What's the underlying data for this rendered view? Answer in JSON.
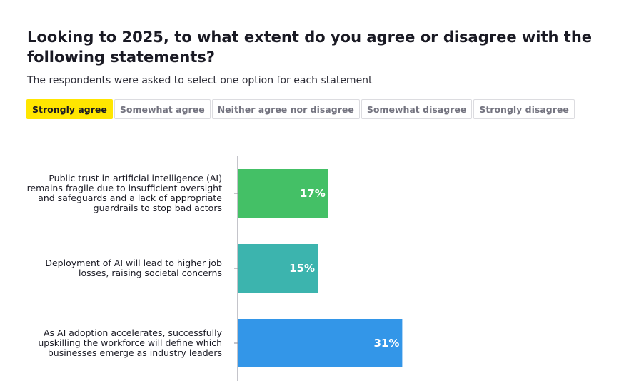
{
  "header": {
    "title": "Looking to 2025, to what extent do you agree or disagree with the following statements?",
    "subtitle": "The respondents were asked to select one option for each statement"
  },
  "tabs": [
    {
      "label": "Strongly agree",
      "active": true
    },
    {
      "label": "Somewhat agree",
      "active": false
    },
    {
      "label": "Neither agree nor disagree",
      "active": false
    },
    {
      "label": "Somewhat disagree",
      "active": false
    },
    {
      "label": "Strongly disagree",
      "active": false
    }
  ],
  "chart_data": {
    "type": "bar",
    "orientation": "horizontal",
    "categories": [
      [
        "Public trust in artificial intelligence (AI)",
        "remains fragile due to insufficient oversight",
        "and safeguards and a lack of appropriate",
        "guardrails to stop bad actors"
      ],
      [
        "Deployment of AI will lead to higher job",
        "losses, raising societal concerns"
      ],
      [
        "As AI adoption accelerates, successfully",
        "upskilling the workforce will define which",
        "businesses emerge as industry leaders"
      ]
    ],
    "values": [
      17,
      15,
      31
    ],
    "value_labels": [
      "17%",
      "15%",
      "31%"
    ],
    "colors": [
      "#44c066",
      "#3cb4ae",
      "#3396e8"
    ],
    "xlim": [
      0,
      100
    ]
  }
}
